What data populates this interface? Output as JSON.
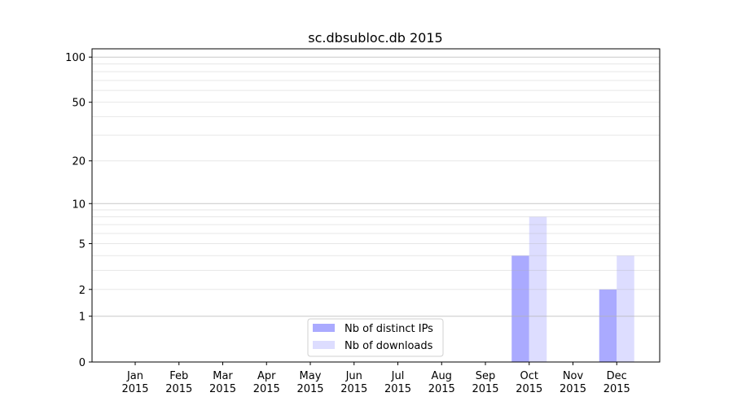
{
  "chart_data": {
    "type": "bar",
    "title": "sc.dbsubloc.db 2015",
    "xlabel": "",
    "ylabel": "",
    "yscale": "log(1+y)",
    "ylim": [
      0,
      110
    ],
    "yticks": [
      0,
      1,
      2,
      5,
      10,
      20,
      50,
      100
    ],
    "grid": true,
    "legend_position": "lower-center",
    "categories": [
      "Jan\n2015",
      "Feb\n2015",
      "Mar\n2015",
      "Apr\n2015",
      "May\n2015",
      "Jun\n2015",
      "Jul\n2015",
      "Aug\n2015",
      "Sep\n2015",
      "Oct\n2015",
      "Nov\n2015",
      "Dec\n2015"
    ],
    "series": [
      {
        "name": "Nb of distinct IPs",
        "color": "#aaaaff",
        "values": [
          0,
          0,
          0,
          0,
          0,
          0,
          0,
          0,
          0,
          4,
          0,
          2
        ]
      },
      {
        "name": "Nb of downloads",
        "color": "#ddddff",
        "values": [
          0,
          0,
          0,
          0,
          0,
          0,
          0,
          0,
          0,
          8,
          0,
          4
        ]
      }
    ]
  }
}
